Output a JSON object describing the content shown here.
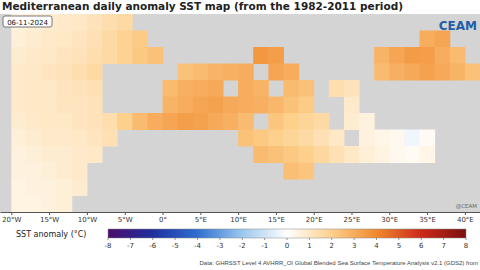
{
  "chart_data": {
    "type": "heatmap",
    "title": "Mediterranean daily anomaly SST map (from the 1982-2011 period)",
    "date": "06-11-2024",
    "logo": "CEAM",
    "credit": "@CEAM",
    "source": "Data: GHRSST Level 4 AVHRR_OI Global Blended Sea Surface Temperature Analysis v2.1 (GDS2) from",
    "tick_labels": "x",
    "xlim": [
      -21.5,
      42
    ],
    "ylim": [
      26,
      50
    ],
    "xticks": [
      {
        "value": -20,
        "label": "20°W"
      },
      {
        "value": -15,
        "label": "15°W"
      },
      {
        "value": -10,
        "label": "10°W"
      },
      {
        "value": -5,
        "label": "5°W"
      },
      {
        "value": 0,
        "label": "0°"
      },
      {
        "value": 5,
        "label": "5°E"
      },
      {
        "value": 10,
        "label": "10°E"
      },
      {
        "value": 15,
        "label": "15°E"
      },
      {
        "value": 20,
        "label": "20°E"
      },
      {
        "value": 25,
        "label": "25°E"
      },
      {
        "value": 30,
        "label": "30°E"
      },
      {
        "value": 35,
        "label": "35°E"
      },
      {
        "value": 40,
        "label": "40°E"
      }
    ],
    "x": [
      -19,
      -17,
      -15,
      -13,
      -11,
      -9,
      -7,
      -5,
      -3,
      -1,
      1,
      3,
      5,
      7,
      9,
      11,
      13,
      15,
      17,
      19,
      21,
      23,
      25,
      27,
      29,
      31,
      33,
      35,
      37,
      39,
      41
    ],
    "y": [
      49,
      47,
      45,
      43,
      41,
      39,
      37,
      35,
      33,
      31,
      29,
      27
    ],
    "values": [
      [
        0.6,
        0.7,
        0.8,
        0.9,
        1.0,
        1.2,
        1.4,
        1.6,
        null,
        null,
        null,
        null,
        null,
        null,
        null,
        null,
        null,
        null,
        null,
        null,
        null,
        null,
        null,
        null,
        null,
        null,
        null,
        null,
        null,
        null,
        null
      ],
      [
        0.7,
        0.8,
        0.9,
        1.0,
        1.1,
        1.3,
        1.6,
        1.9,
        2.1,
        null,
        null,
        null,
        null,
        null,
        null,
        null,
        null,
        null,
        null,
        null,
        null,
        null,
        null,
        null,
        null,
        null,
        null,
        3.0,
        3.2,
        null,
        null
      ],
      [
        0.8,
        0.9,
        1.0,
        1.1,
        1.2,
        1.4,
        1.6,
        1.9,
        2.2,
        2.4,
        null,
        null,
        null,
        null,
        null,
        null,
        3.6,
        3.4,
        null,
        null,
        null,
        null,
        null,
        null,
        2.8,
        3.2,
        3.5,
        3.4,
        3.0,
        2.6,
        null
      ],
      [
        0.9,
        1.0,
        1.1,
        1.2,
        1.4,
        1.6,
        null,
        null,
        null,
        null,
        null,
        2.4,
        2.6,
        2.8,
        2.9,
        3.0,
        null,
        3.2,
        3.0,
        null,
        null,
        null,
        null,
        null,
        2.6,
        2.9,
        3.1,
        3.3,
        3.1,
        2.8,
        2.4
      ],
      [
        0.9,
        1.0,
        1.0,
        1.1,
        1.2,
        1.3,
        null,
        null,
        null,
        null,
        2.6,
        2.9,
        3.0,
        3.1,
        null,
        3.0,
        2.8,
        null,
        2.6,
        2.4,
        null,
        1.4,
        1.2,
        null,
        null,
        null,
        null,
        null,
        null,
        null,
        null
      ],
      [
        0.9,
        1.0,
        1.0,
        1.1,
        1.1,
        1.2,
        null,
        null,
        null,
        null,
        2.8,
        3.0,
        3.2,
        3.3,
        3.1,
        3.0,
        2.9,
        2.7,
        2.4,
        2.1,
        null,
        null,
        0.9,
        null,
        null,
        null,
        null,
        null,
        null,
        null,
        null
      ],
      [
        0.8,
        0.9,
        1.0,
        1.0,
        1.1,
        1.2,
        1.4,
        2.0,
        2.6,
        3.0,
        3.2,
        3.4,
        3.3,
        3.1,
        2.9,
        2.6,
        null,
        2.3,
        2.0,
        1.8,
        1.6,
        null,
        0.8,
        0.6,
        null,
        null,
        null,
        null,
        null,
        null,
        null
      ],
      [
        0.7,
        0.8,
        0.9,
        0.9,
        1.0,
        1.1,
        1.3,
        null,
        null,
        null,
        null,
        null,
        null,
        null,
        null,
        2.4,
        2.2,
        2.0,
        1.8,
        1.6,
        1.3,
        1.0,
        null,
        0.6,
        0.4,
        0.3,
        -0.3,
        0.2,
        null,
        null,
        null
      ],
      [
        0.6,
        0.7,
        0.8,
        0.8,
        0.9,
        1.0,
        null,
        null,
        null,
        null,
        null,
        null,
        null,
        null,
        null,
        null,
        2.6,
        2.4,
        2.2,
        2.0,
        1.7,
        1.3,
        1.0,
        0.7,
        0.5,
        0.3,
        0.2,
        0.4,
        null,
        null,
        null
      ],
      [
        0.6,
        0.6,
        0.7,
        0.8,
        0.9,
        null,
        null,
        null,
        null,
        null,
        null,
        null,
        null,
        null,
        null,
        null,
        null,
        null,
        2.5,
        2.3,
        null,
        null,
        null,
        null,
        null,
        null,
        null,
        null,
        null,
        null,
        null
      ],
      [
        0.5,
        0.6,
        0.6,
        0.7,
        0.8,
        null,
        null,
        null,
        null,
        null,
        null,
        null,
        null,
        null,
        null,
        null,
        null,
        null,
        null,
        null,
        null,
        null,
        null,
        null,
        null,
        null,
        null,
        null,
        null,
        null,
        null
      ],
      [
        0.5,
        0.5,
        0.6,
        0.7,
        null,
        null,
        null,
        null,
        null,
        null,
        null,
        null,
        null,
        null,
        null,
        null,
        null,
        null,
        null,
        null,
        null,
        null,
        null,
        null,
        null,
        null,
        null,
        null,
        null,
        null,
        null
      ]
    ],
    "colorbar": {
      "label": "SST anomaly (°C)",
      "range": [
        -8,
        8
      ],
      "ticks": [
        -8,
        -7,
        -6,
        -5,
        -4,
        -3,
        -2,
        -1,
        0,
        1,
        2,
        3,
        4,
        5,
        6,
        7,
        8
      ],
      "colors": [
        "#4b0c6b",
        "#1f2f9e",
        "#2f6fd0",
        "#9cc7ee",
        "#ffffff",
        "#fdd08c",
        "#f0892e",
        "#cc2a1a",
        "#7a0f0f"
      ]
    }
  }
}
